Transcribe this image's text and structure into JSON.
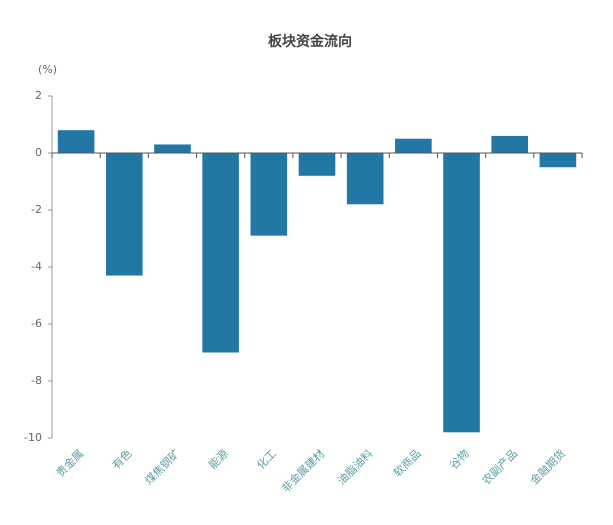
{
  "chart_data": {
    "type": "bar",
    "title": "板块资金流向",
    "y_label": "(%)",
    "categories": [
      "贵金属",
      "有色",
      "煤焦钢矿",
      "能源",
      "化工",
      "非金属建材",
      "油脂油料",
      "软商品",
      "谷物",
      "农副产品",
      "金融期货"
    ],
    "values": [
      0.8,
      -4.3,
      0.3,
      -7.0,
      -2.9,
      -0.8,
      -1.8,
      0.5,
      -9.8,
      0.6,
      -0.5
    ],
    "color": "#2377a4",
    "ylim": [
      -10,
      2
    ],
    "yticks": [
      -10,
      -8,
      -6,
      -4,
      -2,
      0,
      2
    ],
    "grid": false
  }
}
